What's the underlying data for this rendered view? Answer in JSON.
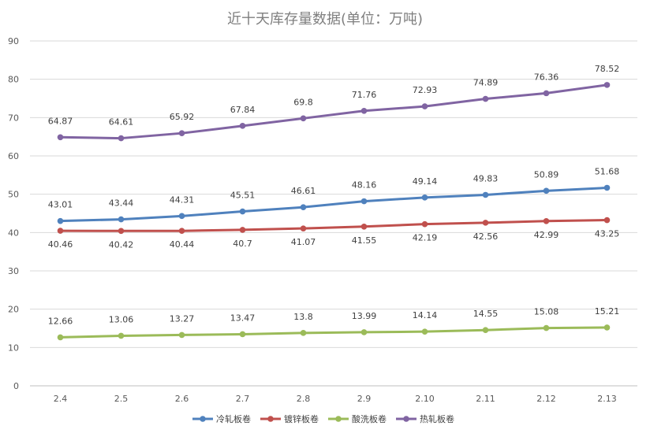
{
  "chart_data": {
    "type": "line",
    "title": "近十天库存量数据(单位：万吨)",
    "categories": [
      "2.4",
      "2.5",
      "2.6",
      "2.7",
      "2.8",
      "2.9",
      "2.10",
      "2.11",
      "2.12",
      "2.13"
    ],
    "ylim": [
      0,
      90
    ],
    "yticks": [
      0,
      10,
      20,
      30,
      40,
      50,
      60,
      70,
      80,
      90
    ],
    "grid": true,
    "legend_position": "bottom",
    "series": [
      {
        "name": "冷轧板卷",
        "color": "#4f81bd",
        "label_pos": "above",
        "values": [
          43.01,
          43.44,
          44.31,
          45.51,
          46.61,
          48.16,
          49.14,
          49.83,
          50.89,
          51.68
        ]
      },
      {
        "name": "镀锌板卷",
        "color": "#c0504d",
        "label_pos": "below",
        "values": [
          40.46,
          40.42,
          40.44,
          40.7,
          41.07,
          41.55,
          42.19,
          42.56,
          42.99,
          43.25
        ]
      },
      {
        "name": "酸洗板卷",
        "color": "#9bbb59",
        "label_pos": "above",
        "values": [
          12.66,
          13.06,
          13.27,
          13.47,
          13.8,
          13.99,
          14.14,
          14.55,
          15.08,
          15.21
        ]
      },
      {
        "name": "热轧板卷",
        "color": "#8064a2",
        "label_pos": "above",
        "values": [
          64.87,
          64.61,
          65.92,
          67.84,
          69.8,
          71.76,
          72.93,
          74.89,
          76.36,
          78.52
        ]
      }
    ]
  }
}
